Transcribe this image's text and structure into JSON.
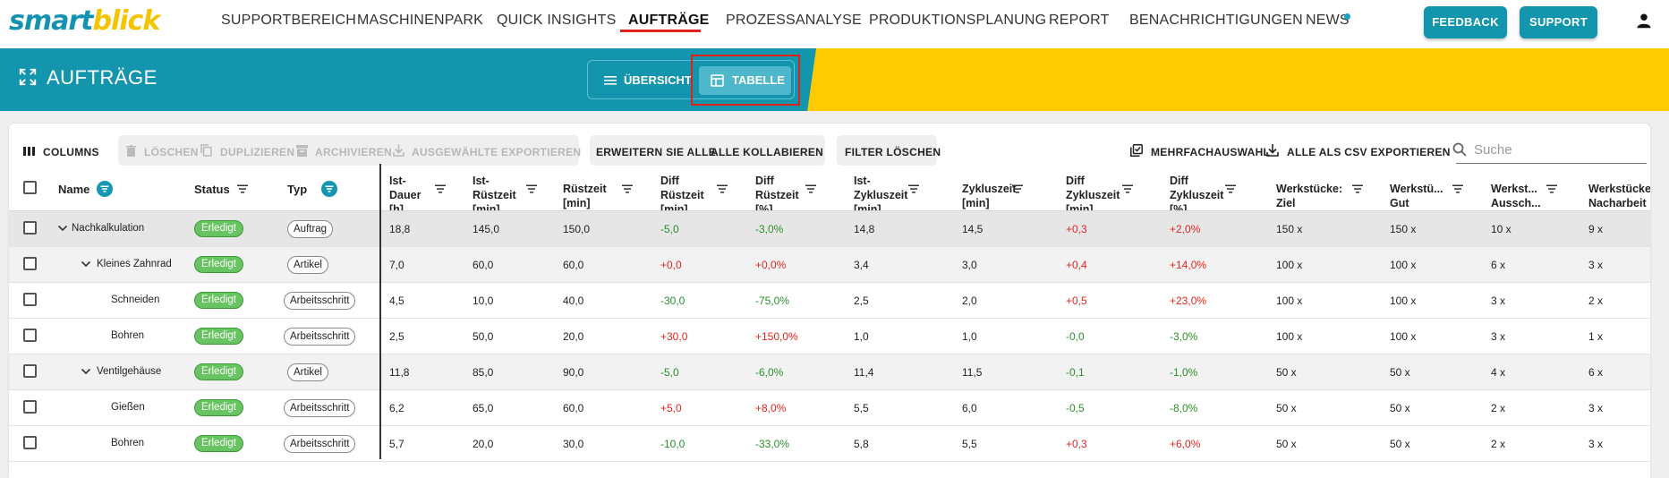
{
  "logo": {
    "part1": "smart",
    "part2": "blick"
  },
  "nav": {
    "items": [
      "SUPPORTBEREICH",
      "MASCHINENPARK",
      "QUICK INSIGHTS",
      "AUFTRÄGE",
      "PROZESSANALYSE",
      "PRODUKTIONSPLANUNG",
      "REPORT",
      "BENACHRICHTIGUNGEN",
      "NEWS"
    ],
    "active": "AUFTRÄGE",
    "feedback_label": "FEEDBACK",
    "support_label": "SUPPORT"
  },
  "banner": {
    "title": "AUFTRÄGE",
    "view_overview": "ÜBERSICHT",
    "view_table": "TABELLE",
    "active_view": "TABELLE"
  },
  "toolbar": {
    "columns": "COLUMNS",
    "delete": "LÖSCHEN",
    "duplicate": "DUPLIZIEREN",
    "archive": "ARCHIVIEREN",
    "export_selected": "AUSGEWÄHLTE EXPORTIEREN",
    "expand_all": "ERWEITERN SIE ALLE",
    "collapse_all": "ALLE KOLLABIEREN",
    "clear_filter": "FILTER LÖSCHEN",
    "multi_select": "MEHRFACHAUSWAHL",
    "export_csv": "ALLE ALS CSV EXPORTIEREN",
    "search_placeholder": "Suche"
  },
  "table": {
    "headers": {
      "name": "Name",
      "status": "Status",
      "type": "Typ",
      "ist_dauer": [
        "Ist-",
        "Dauer",
        "[h]"
      ],
      "ist_ruestzeit": [
        "Ist-",
        "Rüstzeit",
        "[min]"
      ],
      "ruestzeit": [
        "Rüstzeit",
        "[min]"
      ],
      "diff_ruestzeit_min": [
        "Diff",
        "Rüstzeit",
        "[min]"
      ],
      "diff_ruestzeit_pct": [
        "Diff",
        "Rüstzeit",
        "[%]"
      ],
      "ist_zykluszeit": [
        "Ist-",
        "Zykluszeit",
        "[min]"
      ],
      "zykluszeit": [
        "Zykluszeit",
        "[min]"
      ],
      "diff_zykluszeit_min": [
        "Diff",
        "Zykluszeit",
        "[min]"
      ],
      "diff_zykluszeit_pct": [
        "Diff",
        "Zykluszeit",
        "[%]"
      ],
      "werkstuecke_ziel": [
        "Werkstücke:",
        "Ziel"
      ],
      "werkstuecke_gut": [
        "Werkstü...",
        "Gut"
      ],
      "werkstuecke_ausschuss": [
        "Werkst...",
        "Aussch..."
      ],
      "werkstuecke_nacharbeit": [
        "Werkstücke:",
        "Nacharbeit"
      ]
    },
    "rows": [
      {
        "level": 0,
        "expandable": true,
        "name": "Nachkalkulation",
        "status": "Erledigt",
        "type": "Auftrag",
        "ist_dauer": "18,8",
        "ist_ruestzeit": "145,0",
        "ruestzeit": "150,0",
        "diff_ruestzeit_min": "-5,0",
        "diff_ruestzeit_pct": "-3,0%",
        "ist_zykluszeit": "14,8",
        "zykluszeit": "14,5",
        "diff_zykluszeit_min": "+0,3",
        "diff_zykluszeit_pct": "+2,0%",
        "ziel": "150 x",
        "gut": "150 x",
        "ausschuss": "10 x",
        "nacharbeit": "9 x"
      },
      {
        "level": 1,
        "expandable": true,
        "name": "Kleines Zahnrad",
        "status": "Erledigt",
        "type": "Artikel",
        "ist_dauer": "7,0",
        "ist_ruestzeit": "60,0",
        "ruestzeit": "60,0",
        "diff_ruestzeit_min": "+0,0",
        "diff_ruestzeit_pct": "+0,0%",
        "ist_zykluszeit": "3,4",
        "zykluszeit": "3,0",
        "diff_zykluszeit_min": "+0,4",
        "diff_zykluszeit_pct": "+14,0%",
        "ziel": "100 x",
        "gut": "100 x",
        "ausschuss": "6 x",
        "nacharbeit": "3 x"
      },
      {
        "level": 2,
        "expandable": false,
        "name": "Schneiden",
        "status": "Erledigt",
        "type": "Arbeitsschritt",
        "ist_dauer": "4,5",
        "ist_ruestzeit": "10,0",
        "ruestzeit": "40,0",
        "diff_ruestzeit_min": "-30,0",
        "diff_ruestzeit_pct": "-75,0%",
        "ist_zykluszeit": "2,5",
        "zykluszeit": "2,0",
        "diff_zykluszeit_min": "+0,5",
        "diff_zykluszeit_pct": "+23,0%",
        "ziel": "100 x",
        "gut": "100 x",
        "ausschuss": "3 x",
        "nacharbeit": "2 x"
      },
      {
        "level": 2,
        "expandable": false,
        "name": "Bohren",
        "status": "Erledigt",
        "type": "Arbeitsschritt",
        "ist_dauer": "2,5",
        "ist_ruestzeit": "50,0",
        "ruestzeit": "20,0",
        "diff_ruestzeit_min": "+30,0",
        "diff_ruestzeit_pct": "+150,0%",
        "ist_zykluszeit": "1,0",
        "zykluszeit": "1,0",
        "diff_zykluszeit_min": "-0,0",
        "diff_zykluszeit_pct": "-3,0%",
        "ziel": "100 x",
        "gut": "100 x",
        "ausschuss": "3 x",
        "nacharbeit": "1 x"
      },
      {
        "level": 1,
        "expandable": true,
        "name": "Ventilgehäuse",
        "status": "Erledigt",
        "type": "Artikel",
        "ist_dauer": "11,8",
        "ist_ruestzeit": "85,0",
        "ruestzeit": "90,0",
        "diff_ruestzeit_min": "-5,0",
        "diff_ruestzeit_pct": "-6,0%",
        "ist_zykluszeit": "11,4",
        "zykluszeit": "11,5",
        "diff_zykluszeit_min": "-0,1",
        "diff_zykluszeit_pct": "-1,0%",
        "ziel": "50 x",
        "gut": "50 x",
        "ausschuss": "4 x",
        "nacharbeit": "6 x"
      },
      {
        "level": 2,
        "expandable": false,
        "name": "Gießen",
        "status": "Erledigt",
        "type": "Arbeitsschritt",
        "ist_dauer": "6,2",
        "ist_ruestzeit": "65,0",
        "ruestzeit": "60,0",
        "diff_ruestzeit_min": "+5,0",
        "diff_ruestzeit_pct": "+8,0%",
        "ist_zykluszeit": "5,5",
        "zykluszeit": "6,0",
        "diff_zykluszeit_min": "-0,5",
        "diff_zykluszeit_pct": "-8,0%",
        "ziel": "50 x",
        "gut": "50 x",
        "ausschuss": "2 x",
        "nacharbeit": "3 x"
      },
      {
        "level": 2,
        "expandable": false,
        "name": "Bohren",
        "status": "Erledigt",
        "type": "Arbeitsschritt",
        "ist_dauer": "5,7",
        "ist_ruestzeit": "20,0",
        "ruestzeit": "30,0",
        "diff_ruestzeit_min": "-10,0",
        "diff_ruestzeit_pct": "-33,0%",
        "ist_zykluszeit": "5,8",
        "zykluszeit": "5,5",
        "diff_zykluszeit_min": "+0,3",
        "diff_zykluszeit_pct": "+6,0%",
        "ziel": "50 x",
        "gut": "50 x",
        "ausschuss": "2 x",
        "nacharbeit": "3 x"
      }
    ]
  },
  "colors": {
    "brand_teal": "#1495ae",
    "brand_yellow": "#fdcb00",
    "status_green": "#68c463",
    "positive_red": "#e0271e",
    "negative_green": "#2b8f2b"
  }
}
